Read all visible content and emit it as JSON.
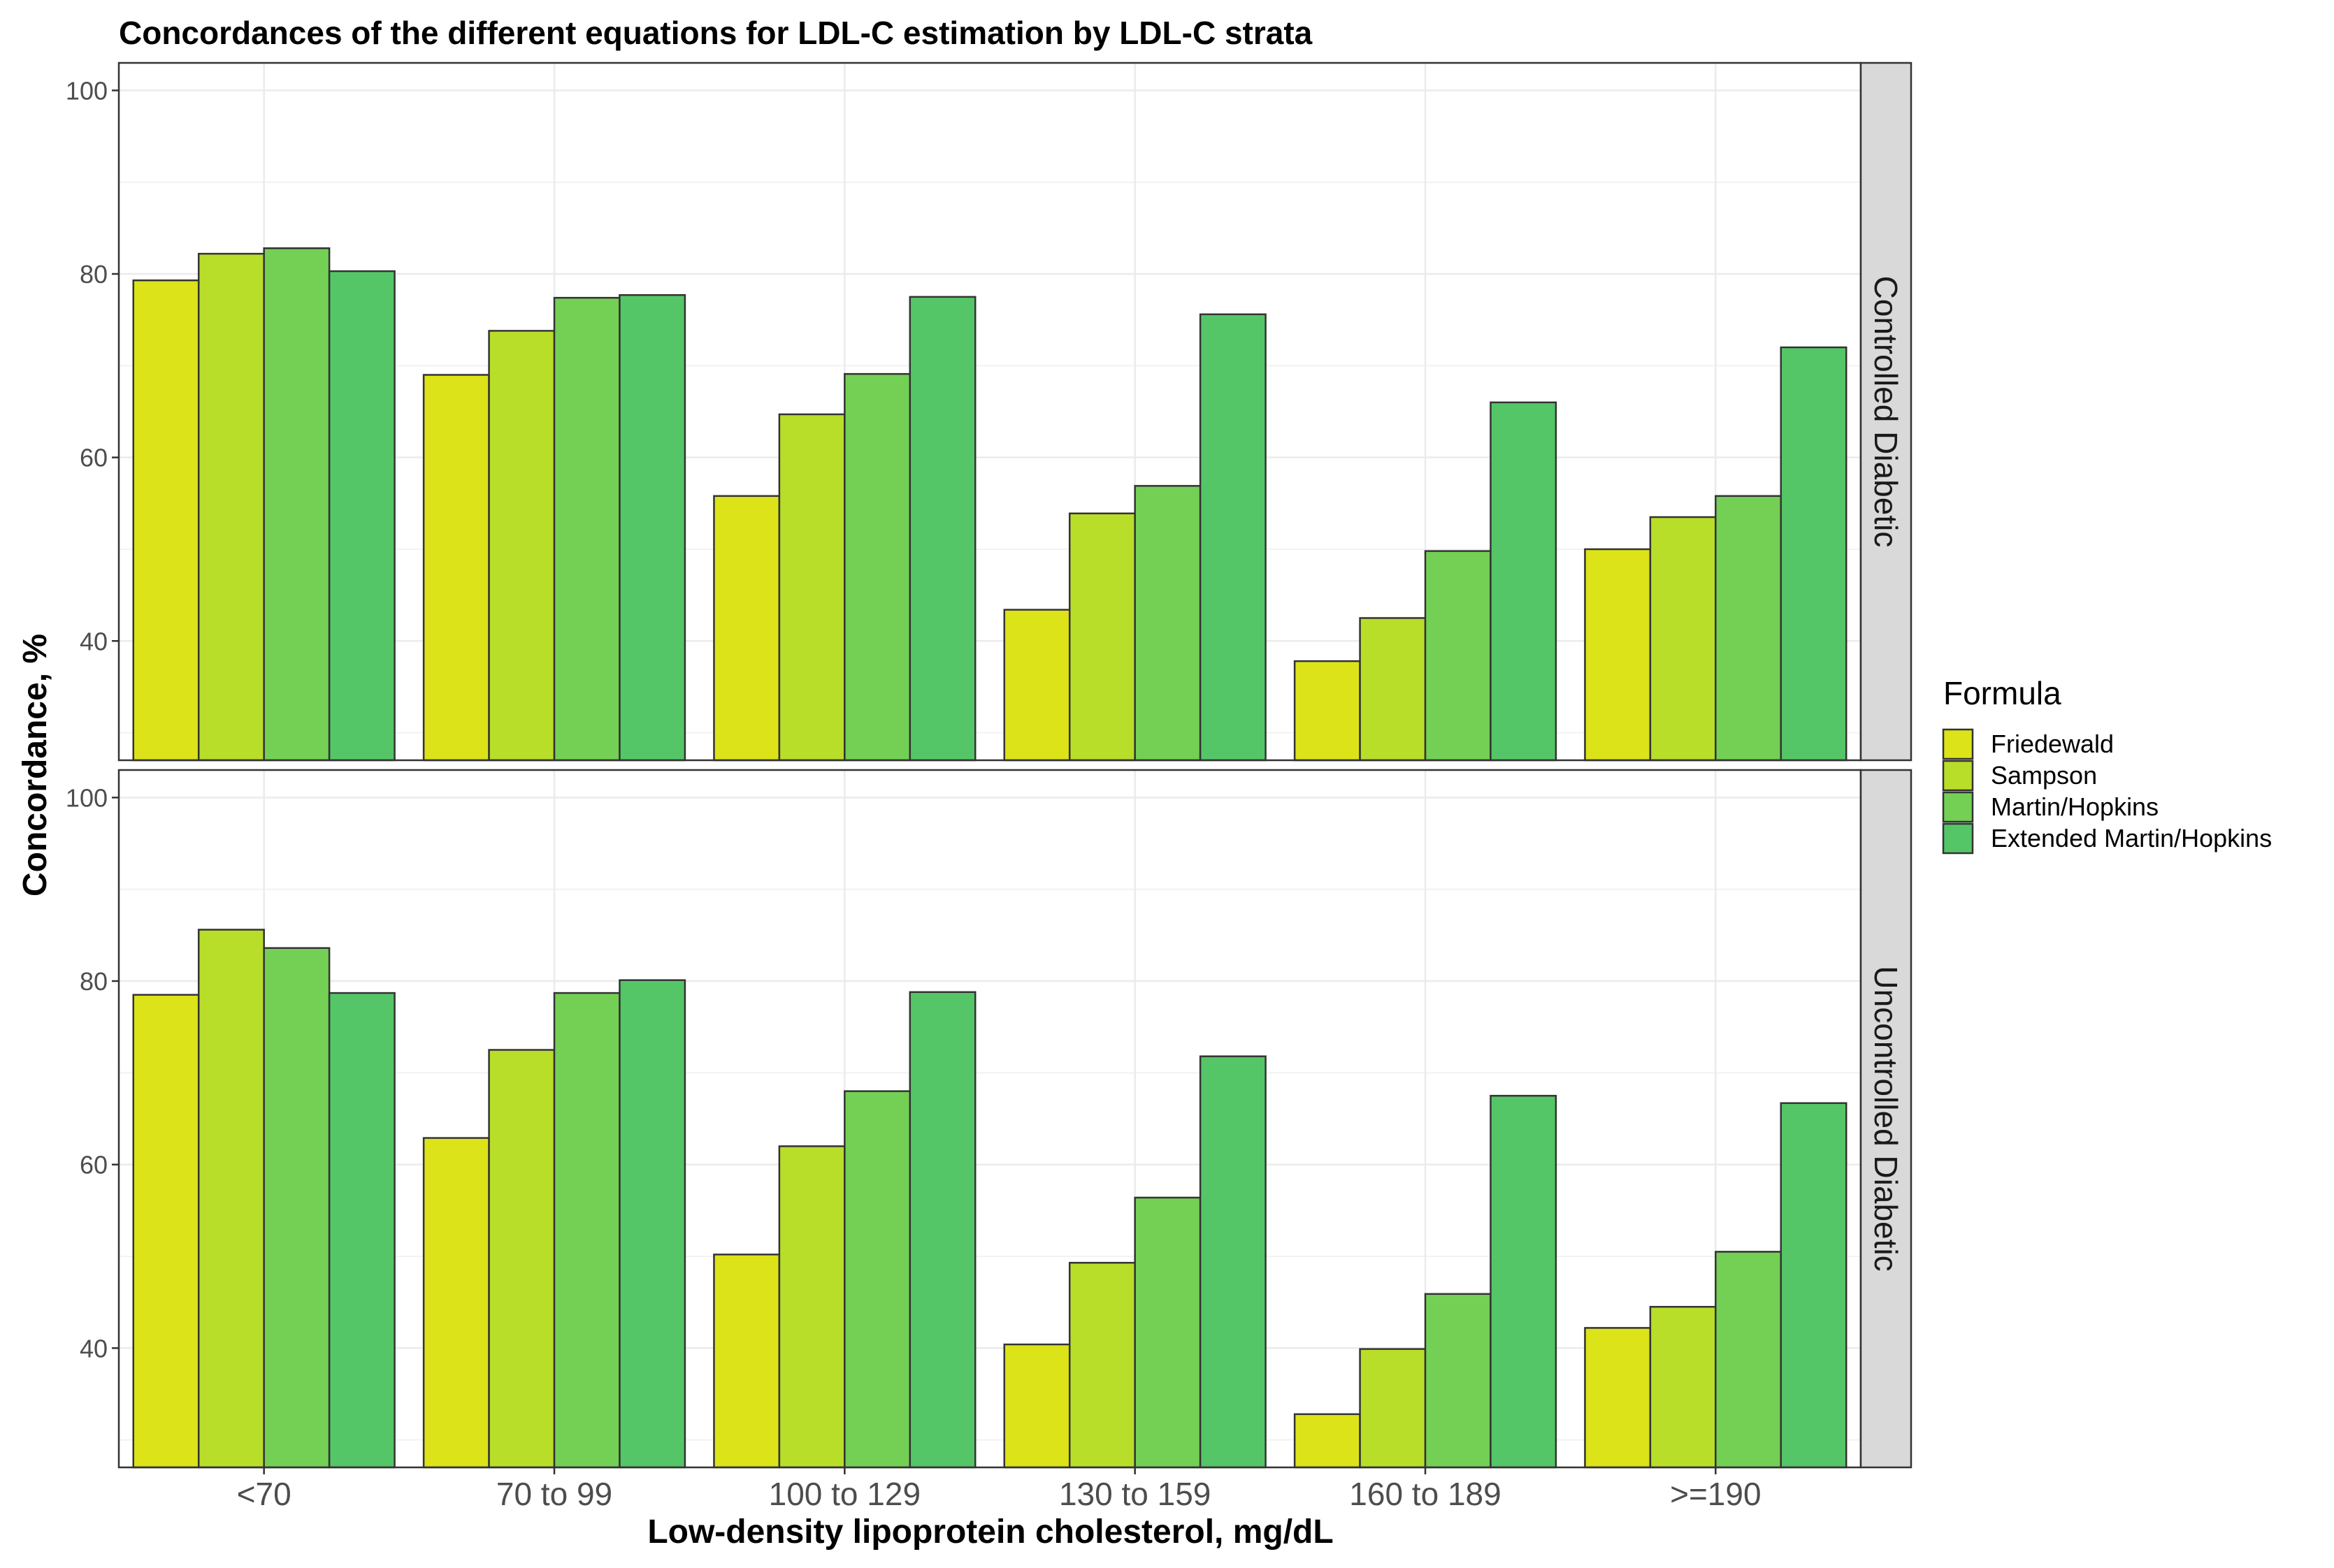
{
  "chart_data": {
    "type": "bar",
    "title": "Concordances of the different equations for LDL-C estimation by LDL-C strata",
    "xlabel": "Low-density lipoprotein cholesterol, mg/dL",
    "ylabel": "Concordance, %",
    "ylim": [
      27,
      103
    ],
    "yticks": [
      "40",
      "60",
      "80",
      "100"
    ],
    "categories": [
      "<70",
      "70 to 99",
      "100 to 129",
      "130 to 159",
      "160 to 189",
      ">=190"
    ],
    "legend": {
      "title": "Formula",
      "position": "right"
    },
    "series_meta": [
      {
        "name": "Friedewald",
        "color": "#dce319"
      },
      {
        "name": "Sampson",
        "color": "#b8de29"
      },
      {
        "name": "Martin/Hopkins",
        "color": "#73d055"
      },
      {
        "name": "Extended Martin/Hopkins",
        "color": "#55c667"
      }
    ],
    "facets": [
      {
        "label": "Controlled Diabetic",
        "series": [
          {
            "name": "Friedewald",
            "values": [
              79.3,
              69.0,
              55.8,
              43.4,
              37.8,
              50.0
            ]
          },
          {
            "name": "Sampson",
            "values": [
              82.2,
              73.8,
              64.7,
              53.9,
              42.5,
              53.5
            ]
          },
          {
            "name": "Martin/Hopkins",
            "values": [
              82.8,
              77.4,
              69.1,
              56.9,
              49.8,
              55.8
            ]
          },
          {
            "name": "Extended Martin/Hopkins",
            "values": [
              80.3,
              77.7,
              77.5,
              75.6,
              66.0,
              72.0
            ]
          }
        ]
      },
      {
        "label": "Uncontrolled Diabetic",
        "series": [
          {
            "name": "Friedewald",
            "values": [
              78.5,
              62.9,
              50.2,
              40.4,
              32.8,
              42.2
            ]
          },
          {
            "name": "Sampson",
            "values": [
              85.6,
              72.5,
              62.0,
              49.3,
              39.9,
              44.5
            ]
          },
          {
            "name": "Martin/Hopkins",
            "values": [
              83.6,
              78.7,
              68.0,
              56.4,
              45.9,
              50.5
            ]
          },
          {
            "name": "Extended Martin/Hopkins",
            "values": [
              78.7,
              80.1,
              78.8,
              71.8,
              67.5,
              66.7
            ]
          }
        ]
      }
    ]
  }
}
